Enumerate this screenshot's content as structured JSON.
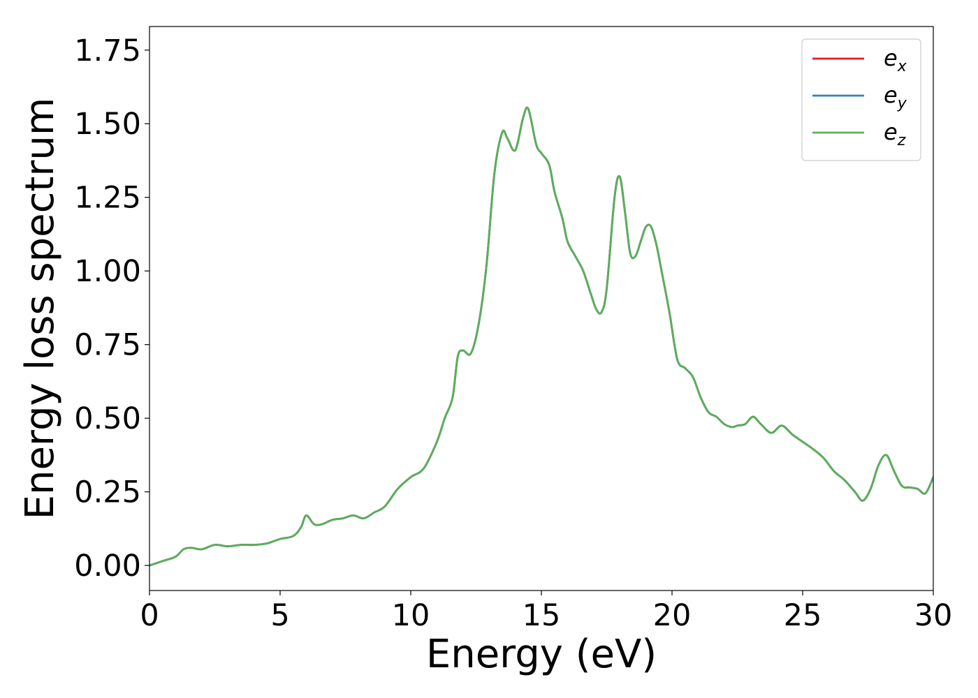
{
  "chart_data": {
    "type": "line",
    "xlabel": "Energy (eV)",
    "ylabel": "Energy loss spectrum",
    "xlim": [
      0,
      30
    ],
    "ylim": [
      -0.085,
      1.83
    ],
    "x_ticks": [
      0,
      5,
      10,
      15,
      20,
      25,
      30
    ],
    "x_tick_labels": [
      "0",
      "5",
      "10",
      "15",
      "20",
      "25",
      "30"
    ],
    "y_ticks": [
      0.0,
      0.25,
      0.5,
      0.75,
      1.0,
      1.25,
      1.5,
      1.75
    ],
    "y_tick_labels": [
      "0.00",
      "0.25",
      "0.50",
      "0.75",
      "1.00",
      "1.25",
      "1.50",
      "1.75"
    ],
    "grid": false,
    "legend_placement": "top-right",
    "series": [
      {
        "name": "e_x",
        "legend_main": "e",
        "legend_sub": "x",
        "color": "#e41a1c",
        "x": [
          0,
          0.5,
          1.0,
          1.3,
          1.6,
          2.0,
          2.5,
          3.0,
          3.5,
          4.0,
          4.5,
          5.0,
          5.5,
          5.8,
          6.0,
          6.3,
          6.6,
          7.0,
          7.4,
          7.8,
          8.2,
          8.6,
          9.0,
          9.5,
          10.0,
          10.5,
          11.0,
          11.3,
          11.6,
          11.8,
          12.0,
          12.3,
          12.6,
          12.9,
          13.2,
          13.5,
          13.7,
          14.0,
          14.3,
          14.5,
          14.8,
          15.0,
          15.3,
          15.5,
          15.8,
          16.0,
          16.3,
          16.6,
          16.9,
          17.1,
          17.3,
          17.5,
          17.8,
          18.0,
          18.2,
          18.4,
          18.6,
          18.8,
          19.0,
          19.2,
          19.4,
          19.6,
          19.9,
          20.2,
          20.5,
          20.8,
          21.1,
          21.4,
          21.7,
          22.0,
          22.3,
          22.5,
          22.8,
          23.1,
          23.4,
          23.8,
          24.2,
          24.6,
          25.0,
          25.4,
          25.8,
          26.2,
          26.6,
          27.0,
          27.3,
          27.6,
          27.9,
          28.2,
          28.5,
          28.8,
          29.1,
          29.4,
          29.7,
          30.0
        ],
        "y": [
          0.0,
          0.015,
          0.03,
          0.055,
          0.06,
          0.055,
          0.07,
          0.065,
          0.07,
          0.07,
          0.075,
          0.09,
          0.1,
          0.13,
          0.17,
          0.14,
          0.14,
          0.155,
          0.16,
          0.17,
          0.16,
          0.18,
          0.2,
          0.26,
          0.3,
          0.33,
          0.42,
          0.5,
          0.57,
          0.71,
          0.73,
          0.72,
          0.82,
          1.02,
          1.33,
          1.47,
          1.45,
          1.41,
          1.52,
          1.55,
          1.43,
          1.4,
          1.36,
          1.27,
          1.18,
          1.1,
          1.05,
          1.0,
          0.92,
          0.87,
          0.86,
          0.94,
          1.25,
          1.32,
          1.2,
          1.06,
          1.05,
          1.1,
          1.15,
          1.15,
          1.09,
          1.0,
          0.86,
          0.7,
          0.67,
          0.64,
          0.57,
          0.52,
          0.505,
          0.48,
          0.47,
          0.475,
          0.48,
          0.505,
          0.48,
          0.45,
          0.475,
          0.445,
          0.42,
          0.395,
          0.365,
          0.32,
          0.29,
          0.25,
          0.22,
          0.26,
          0.34,
          0.375,
          0.32,
          0.27,
          0.265,
          0.26,
          0.245,
          0.3
        ]
      },
      {
        "name": "e_y",
        "legend_main": "e",
        "legend_sub": "y",
        "color": "#377eb8",
        "x": [
          0,
          0.5,
          1.0,
          1.3,
          1.6,
          2.0,
          2.5,
          3.0,
          3.5,
          4.0,
          4.5,
          5.0,
          5.5,
          5.8,
          6.0,
          6.3,
          6.6,
          7.0,
          7.4,
          7.8,
          8.2,
          8.6,
          9.0,
          9.5,
          10.0,
          10.5,
          11.0,
          11.3,
          11.6,
          11.8,
          12.0,
          12.3,
          12.6,
          12.9,
          13.2,
          13.5,
          13.7,
          14.0,
          14.3,
          14.5,
          14.8,
          15.0,
          15.3,
          15.5,
          15.8,
          16.0,
          16.3,
          16.6,
          16.9,
          17.1,
          17.3,
          17.5,
          17.8,
          18.0,
          18.2,
          18.4,
          18.6,
          18.8,
          19.0,
          19.2,
          19.4,
          19.6,
          19.9,
          20.2,
          20.5,
          20.8,
          21.1,
          21.4,
          21.7,
          22.0,
          22.3,
          22.5,
          22.8,
          23.1,
          23.4,
          23.8,
          24.2,
          24.6,
          25.0,
          25.4,
          25.8,
          26.2,
          26.6,
          27.0,
          27.3,
          27.6,
          27.9,
          28.2,
          28.5,
          28.8,
          29.1,
          29.4,
          29.7,
          30.0
        ],
        "y": [
          0.0,
          0.015,
          0.03,
          0.055,
          0.06,
          0.055,
          0.07,
          0.065,
          0.07,
          0.07,
          0.075,
          0.09,
          0.1,
          0.13,
          0.17,
          0.14,
          0.14,
          0.155,
          0.16,
          0.17,
          0.16,
          0.18,
          0.2,
          0.26,
          0.3,
          0.33,
          0.42,
          0.5,
          0.57,
          0.71,
          0.73,
          0.72,
          0.82,
          1.02,
          1.33,
          1.47,
          1.45,
          1.41,
          1.52,
          1.55,
          1.43,
          1.4,
          1.36,
          1.27,
          1.18,
          1.1,
          1.05,
          1.0,
          0.92,
          0.87,
          0.86,
          0.94,
          1.25,
          1.32,
          1.2,
          1.06,
          1.05,
          1.1,
          1.15,
          1.15,
          1.09,
          1.0,
          0.86,
          0.7,
          0.67,
          0.64,
          0.57,
          0.52,
          0.505,
          0.48,
          0.47,
          0.475,
          0.48,
          0.505,
          0.48,
          0.45,
          0.475,
          0.445,
          0.42,
          0.395,
          0.365,
          0.32,
          0.29,
          0.25,
          0.22,
          0.26,
          0.34,
          0.375,
          0.32,
          0.27,
          0.265,
          0.26,
          0.245,
          0.3
        ]
      },
      {
        "name": "e_z",
        "legend_main": "e",
        "legend_sub": "z",
        "color": "#5aaf5a",
        "x": [
          0,
          0.5,
          1.0,
          1.3,
          1.6,
          2.0,
          2.5,
          3.0,
          3.5,
          4.0,
          4.5,
          5.0,
          5.5,
          5.8,
          6.0,
          6.3,
          6.6,
          7.0,
          7.4,
          7.8,
          8.2,
          8.6,
          9.0,
          9.5,
          10.0,
          10.5,
          11.0,
          11.3,
          11.6,
          11.8,
          12.0,
          12.3,
          12.6,
          12.9,
          13.2,
          13.5,
          13.7,
          14.0,
          14.3,
          14.5,
          14.8,
          15.0,
          15.3,
          15.5,
          15.8,
          16.0,
          16.3,
          16.6,
          16.9,
          17.1,
          17.3,
          17.5,
          17.8,
          18.0,
          18.2,
          18.4,
          18.6,
          18.8,
          19.0,
          19.2,
          19.4,
          19.6,
          19.9,
          20.2,
          20.5,
          20.8,
          21.1,
          21.4,
          21.7,
          22.0,
          22.3,
          22.5,
          22.8,
          23.1,
          23.4,
          23.8,
          24.2,
          24.6,
          25.0,
          25.4,
          25.8,
          26.2,
          26.6,
          27.0,
          27.3,
          27.6,
          27.9,
          28.2,
          28.5,
          28.8,
          29.1,
          29.4,
          29.7,
          30.0
        ],
        "y": [
          0.0,
          0.015,
          0.03,
          0.055,
          0.06,
          0.055,
          0.07,
          0.065,
          0.07,
          0.07,
          0.075,
          0.09,
          0.1,
          0.13,
          0.17,
          0.14,
          0.14,
          0.155,
          0.16,
          0.17,
          0.16,
          0.18,
          0.2,
          0.26,
          0.3,
          0.33,
          0.42,
          0.5,
          0.57,
          0.71,
          0.73,
          0.72,
          0.82,
          1.02,
          1.33,
          1.47,
          1.45,
          1.41,
          1.52,
          1.55,
          1.43,
          1.4,
          1.36,
          1.27,
          1.18,
          1.1,
          1.05,
          1.0,
          0.92,
          0.87,
          0.86,
          0.94,
          1.25,
          1.32,
          1.2,
          1.06,
          1.05,
          1.1,
          1.15,
          1.15,
          1.09,
          1.0,
          0.86,
          0.7,
          0.67,
          0.64,
          0.57,
          0.52,
          0.505,
          0.48,
          0.47,
          0.475,
          0.48,
          0.505,
          0.48,
          0.45,
          0.475,
          0.445,
          0.42,
          0.395,
          0.365,
          0.32,
          0.29,
          0.25,
          0.22,
          0.26,
          0.34,
          0.375,
          0.32,
          0.27,
          0.265,
          0.26,
          0.245,
          0.3
        ]
      }
    ]
  }
}
